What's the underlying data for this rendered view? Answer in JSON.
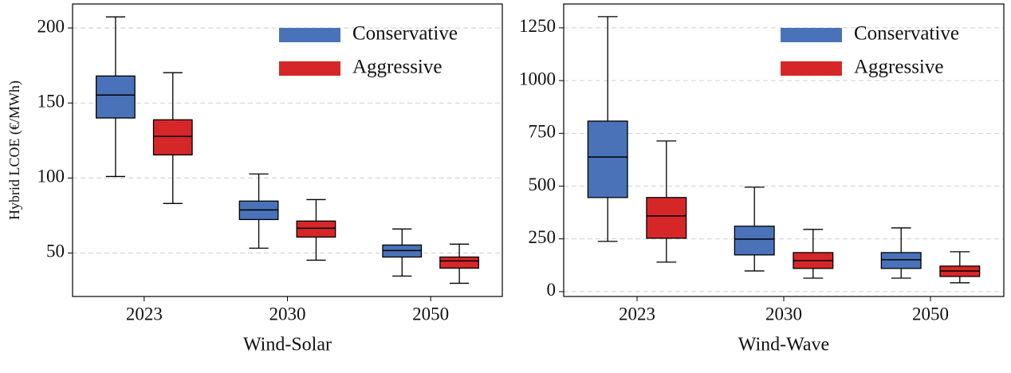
{
  "chart_data": [
    {
      "type": "box",
      "xlabel": "Wind-Solar",
      "ylabel": "Hybrid LCOE (€/MWh)",
      "categories": [
        "2023",
        "2030",
        "2050"
      ],
      "ylim": [
        21,
        216
      ],
      "yticks": [
        50,
        100,
        150,
        200
      ],
      "grid": true,
      "legend": "upper right",
      "series": [
        {
          "name": "Conservative",
          "color": "#4a72b8",
          "whislo": [
            101,
            53.2,
            34.6
          ],
          "q1": [
            140,
            72.3,
            47.3
          ],
          "med": [
            155.3,
            78.7,
            51.6
          ],
          "q3": [
            168,
            84.6,
            55.3
          ],
          "whishi": [
            207.4,
            102.7,
            66
          ]
        },
        {
          "name": "Aggressive",
          "color": "#d62728",
          "whislo": [
            83,
            45.2,
            29.8
          ],
          "q1": [
            115.4,
            60.6,
            39.9
          ],
          "med": [
            127.7,
            66.5,
            44.7
          ],
          "q3": [
            138.8,
            71.3,
            47.3
          ],
          "whishi": [
            170.2,
            85.6,
            55.9
          ]
        }
      ]
    },
    {
      "type": "box",
      "xlabel": "Wind-Wave",
      "categories": [
        "2023",
        "2030",
        "2050"
      ],
      "ylim": [
        -23,
        1363
      ],
      "yticks": [
        0,
        250,
        500,
        750,
        1000,
        1250
      ],
      "grid": true,
      "legend": "upper right",
      "series": [
        {
          "name": "Conservative",
          "color": "#4a72b8",
          "whislo": [
            238,
            98,
            64
          ],
          "q1": [
            446,
            174,
            110
          ],
          "med": [
            638,
            249,
            151
          ],
          "q3": [
            808,
            310,
            185
          ],
          "whishi": [
            1303,
            495,
            302
          ]
        },
        {
          "name": "Aggressive",
          "color": "#d62728",
          "whislo": [
            140,
            64,
            42
          ],
          "q1": [
            253,
            110,
            72
          ],
          "med": [
            359,
            147,
            98
          ],
          "q3": [
            446,
            185,
            121
          ],
          "whishi": [
            714,
            295,
            189
          ]
        }
      ]
    }
  ]
}
